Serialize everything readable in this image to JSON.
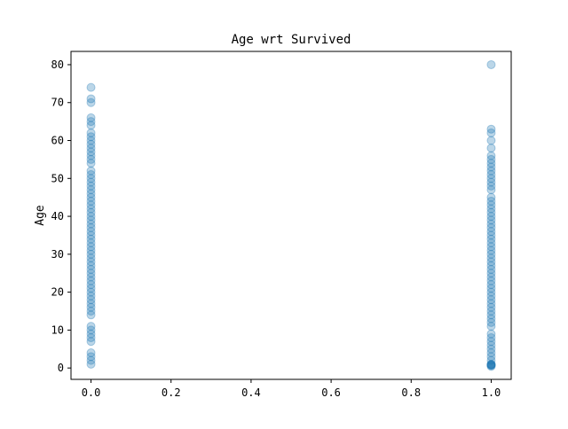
{
  "chart_data": {
    "type": "scatter",
    "title": "Age wrt Survived",
    "xlabel": "",
    "ylabel": "Age",
    "xlim": [
      -0.05,
      1.05
    ],
    "ylim": [
      -3,
      83.5
    ],
    "x_ticks": [
      "0.0",
      "0.2",
      "0.4",
      "0.6",
      "0.8",
      "1.0"
    ],
    "x_tick_values": [
      0.0,
      0.2,
      0.4,
      0.6,
      0.8,
      1.0
    ],
    "y_ticks": [
      "0",
      "10",
      "20",
      "30",
      "40",
      "50",
      "60",
      "70",
      "80"
    ],
    "y_tick_values": [
      0,
      10,
      20,
      30,
      40,
      50,
      60,
      70,
      80
    ],
    "grid": false,
    "color": "#1f77b4",
    "series": [
      {
        "x": 0,
        "values": [
          1,
          2,
          3,
          4,
          7,
          8,
          9,
          10,
          11,
          14,
          15,
          16,
          17,
          18,
          19,
          20,
          21,
          22,
          23,
          24,
          25,
          26,
          27,
          28,
          29,
          30,
          31,
          32,
          33,
          34,
          35,
          36,
          37,
          38,
          39,
          40,
          41,
          42,
          43,
          44,
          45,
          46,
          47,
          48,
          49,
          50,
          51,
          52,
          54,
          55,
          56,
          57,
          58,
          59,
          60,
          61,
          62,
          64,
          65,
          66,
          70,
          71,
          74
        ]
      },
      {
        "x": 1,
        "values": [
          0.42,
          0.67,
          0.75,
          0.83,
          0.92,
          1,
          2,
          3,
          4,
          5,
          6,
          7,
          8,
          9,
          11,
          12,
          13,
          14,
          15,
          16,
          17,
          18,
          19,
          20,
          21,
          22,
          23,
          24,
          25,
          26,
          27,
          28,
          29,
          30,
          31,
          32,
          33,
          34,
          35,
          36,
          37,
          38,
          39,
          40,
          41,
          42,
          43,
          44,
          45,
          47,
          48,
          49,
          50,
          51,
          52,
          53,
          54,
          55,
          56,
          58,
          60,
          62,
          63,
          80
        ]
      }
    ]
  }
}
